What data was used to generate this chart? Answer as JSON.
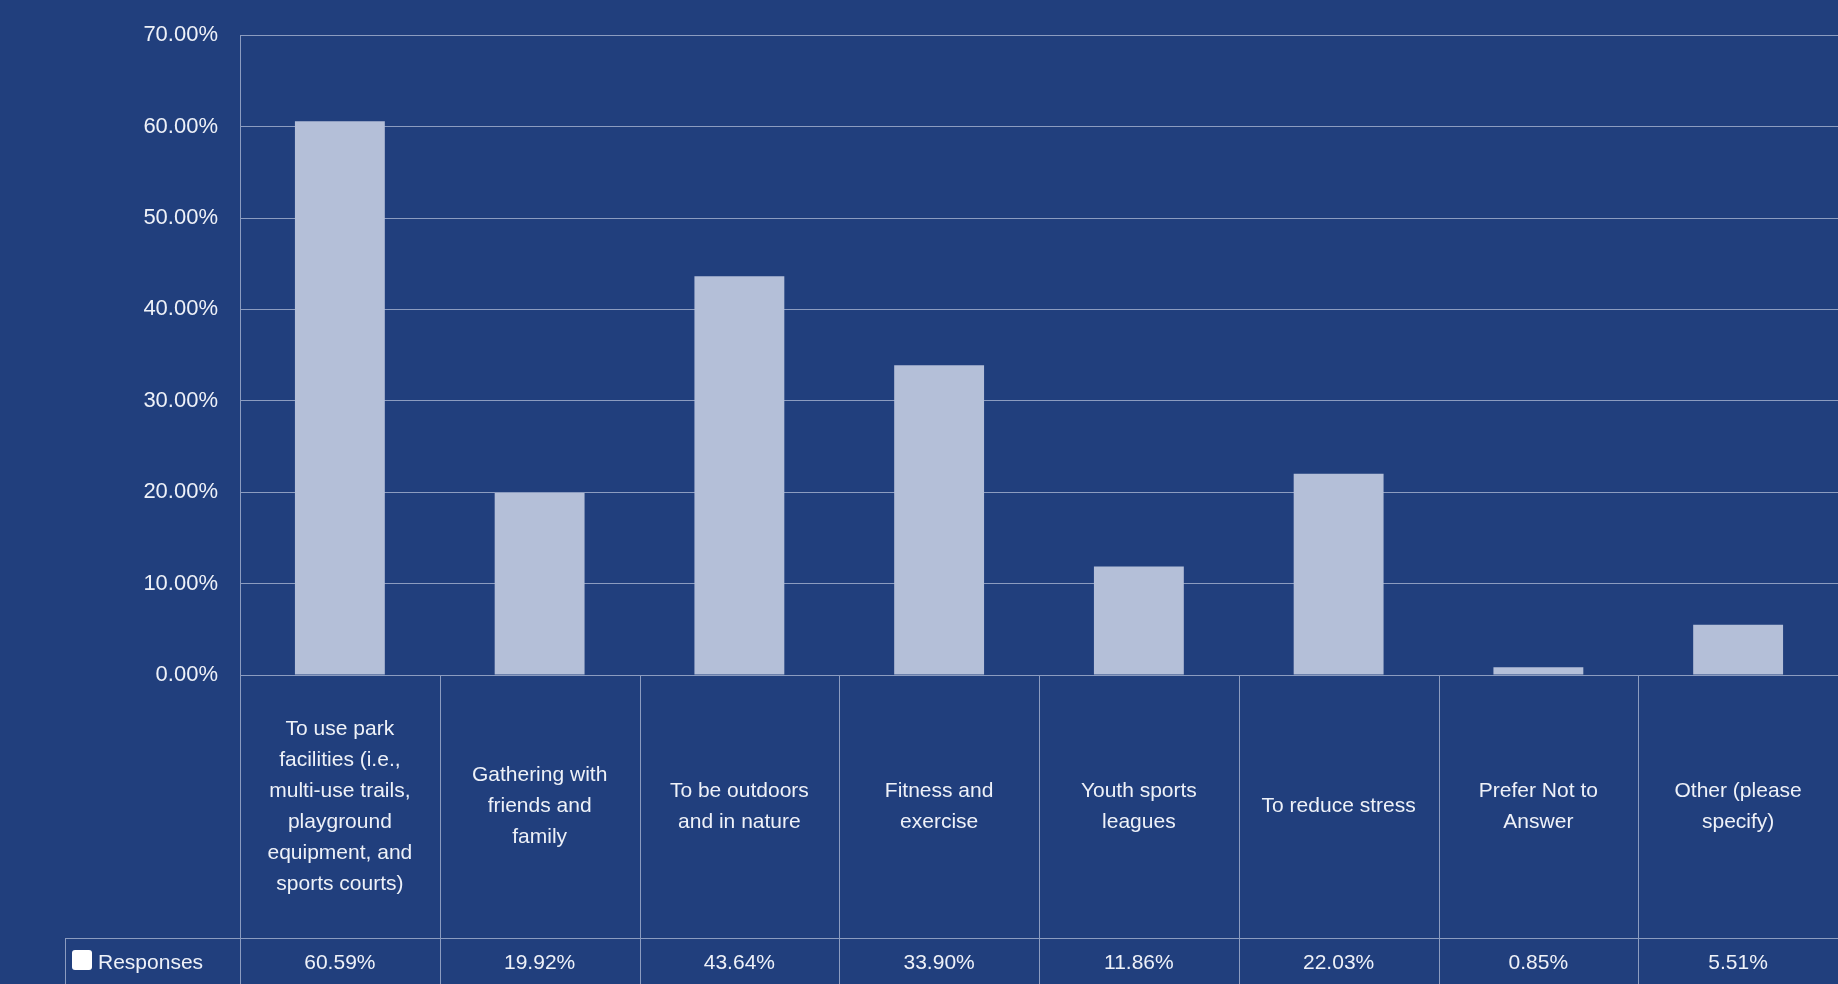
{
  "chart_data": {
    "type": "bar",
    "categories": [
      "To use park facilities (i.e., multi-use trails, playground equipment, and sports courts)",
      "Gathering with friends and family",
      "To be outdoors and in nature",
      "Fitness and exercise",
      "Youth sports leagues",
      "To reduce stress",
      "Prefer Not to Answer",
      "Other (please specify)"
    ],
    "series": [
      {
        "name": "Responses",
        "color": "#b4bfd8",
        "values": [
          60.59,
          19.92,
          43.64,
          33.9,
          11.86,
          22.03,
          0.85,
          5.51
        ],
        "value_labels": [
          "60.59%",
          "19.92%",
          "43.64%",
          "33.90%",
          "11.86%",
          "22.03%",
          "0.85%",
          "5.51%"
        ]
      }
    ],
    "ylim": [
      0,
      70
    ],
    "yticks": [
      {
        "value": 0,
        "label": "0.00%"
      },
      {
        "value": 10,
        "label": "10.00%"
      },
      {
        "value": 20,
        "label": "20.00%"
      },
      {
        "value": 30,
        "label": "30.00%"
      },
      {
        "value": 40,
        "label": "40.00%"
      },
      {
        "value": 50,
        "label": "50.00%"
      },
      {
        "value": 60,
        "label": "60.00%"
      },
      {
        "value": 70,
        "label": "70.00%"
      }
    ],
    "grid": "y"
  }
}
